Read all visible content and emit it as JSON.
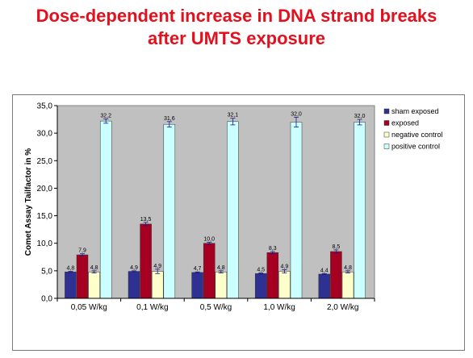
{
  "slide": {
    "title_line1": "Dose-dependent increase in DNA strand breaks",
    "title_line2": "after UMTS exposure"
  },
  "colors": {
    "title": "#e3101e",
    "plot_background": "#c0c0c0",
    "sham": "#2e3192",
    "exposed": "#a50021",
    "negative": "#ffffcc",
    "positive": "#ccffff"
  },
  "chart_data": {
    "type": "bar",
    "title": "",
    "xlabel": "",
    "ylabel": "Comet Assay Tailfactor in %",
    "ylim": [
      0,
      35
    ],
    "yticks": [
      "0,0",
      "5,0",
      "10,0",
      "15,0",
      "20,0",
      "25,0",
      "30,0",
      "35,0"
    ],
    "grid": false,
    "legend_position": "right",
    "categories": [
      "0,05 W/kg",
      "0,1 W/kg",
      "0,5 W/kg",
      "1,0 W/kg",
      "2,0 W/kg"
    ],
    "series": [
      {
        "name": "sham exposed",
        "values": [
          4.8,
          4.9,
          4.7,
          4.5,
          4.4
        ],
        "labels": [
          "4,8",
          "4,9",
          "4,7",
          "4,5",
          "4,4"
        ],
        "errors": [
          0.1,
          0.1,
          0.1,
          0.1,
          0.1
        ]
      },
      {
        "name": "exposed",
        "values": [
          7.9,
          13.5,
          10.0,
          8.3,
          8.5
        ],
        "labels": [
          "7,9",
          "13,5",
          "10,0",
          "8,3",
          "8,5"
        ],
        "errors": [
          0.2,
          0.3,
          0.2,
          0.2,
          0.3
        ]
      },
      {
        "name": "negative control",
        "values": [
          4.8,
          4.9,
          4.8,
          4.9,
          4.8
        ],
        "labels": [
          "4,8",
          "4,9",
          "4,8",
          "4,9",
          "4,8"
        ],
        "errors": [
          0.2,
          0.4,
          0.2,
          0.3,
          0.2
        ]
      },
      {
        "name": "positive control",
        "values": [
          32.2,
          31.6,
          32.1,
          32.0,
          32.0
        ],
        "labels": [
          "32,2",
          "31,6",
          "32,1",
          "32,0",
          "32,0"
        ],
        "errors": [
          0.4,
          0.5,
          0.6,
          0.9,
          0.5
        ]
      }
    ]
  }
}
